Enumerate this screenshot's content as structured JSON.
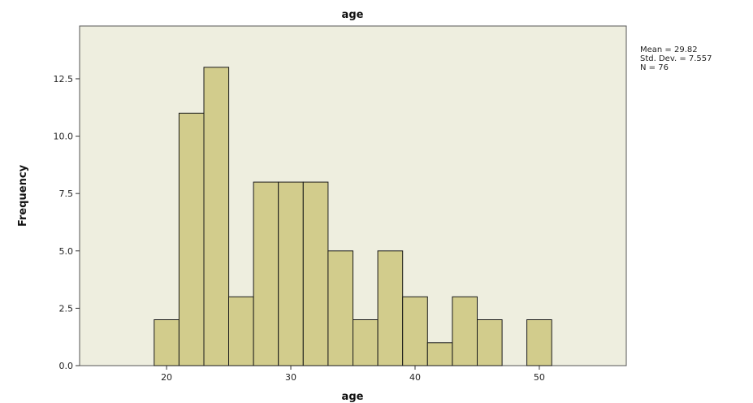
{
  "chart_data": {
    "type": "bar",
    "title": "age",
    "xlabel": "age",
    "ylabel": "Frequency",
    "xlim": [
      13,
      57
    ],
    "ylim": [
      0,
      14.8
    ],
    "x_ticks": [
      20,
      30,
      40,
      50
    ],
    "y_ticks": [
      0.0,
      2.5,
      5.0,
      7.5,
      10.0,
      12.5
    ],
    "y_tick_labels": [
      "0.0",
      "2.5",
      "5.0",
      "7.5",
      "10.0",
      "12.5"
    ],
    "bin_width": 2,
    "bins": [
      {
        "start": 19,
        "end": 21,
        "value": 2
      },
      {
        "start": 21,
        "end": 23,
        "value": 11
      },
      {
        "start": 23,
        "end": 25,
        "value": 13
      },
      {
        "start": 25,
        "end": 27,
        "value": 3
      },
      {
        "start": 27,
        "end": 29,
        "value": 8
      },
      {
        "start": 29,
        "end": 31,
        "value": 8
      },
      {
        "start": 31,
        "end": 33,
        "value": 8
      },
      {
        "start": 33,
        "end": 35,
        "value": 5
      },
      {
        "start": 35,
        "end": 37,
        "value": 2
      },
      {
        "start": 37,
        "end": 39,
        "value": 5
      },
      {
        "start": 39,
        "end": 41,
        "value": 3
      },
      {
        "start": 41,
        "end": 43,
        "value": 1
      },
      {
        "start": 43,
        "end": 45,
        "value": 3
      },
      {
        "start": 45,
        "end": 47,
        "value": 2
      },
      {
        "start": 49,
        "end": 51,
        "value": 2
      }
    ],
    "stats": [
      "Mean = 29.82",
      "Std. Dev. = 7.557",
      "N = 76"
    ],
    "colors": {
      "plot_background": "#eeeedf",
      "bar_fill": "#d2cc8c",
      "bar_stroke": "#1a1a1a",
      "frame": "#555555"
    },
    "grid": false,
    "legend": "none"
  }
}
